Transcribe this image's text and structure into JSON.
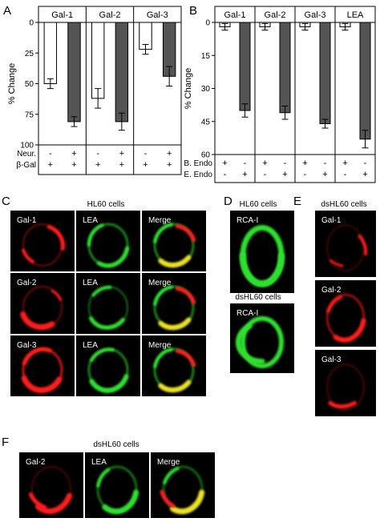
{
  "chart_data": [
    {
      "panel": "A",
      "type": "bar",
      "ylabel": "% Change",
      "ylim": [
        0,
        100
      ],
      "y_ticks": [
        "0",
        "25",
        "50",
        "75",
        "100"
      ],
      "y_inverted": true,
      "groups": [
        "Gal-1",
        "Gal-2",
        "Gal-3"
      ],
      "bars": [
        {
          "group": "Gal-1",
          "fill": "white",
          "value": 50,
          "error": 4
        },
        {
          "group": "Gal-1",
          "fill": "gray",
          "value": 81,
          "error": 4
        },
        {
          "group": "Gal-2",
          "fill": "white",
          "value": 62,
          "error": 8
        },
        {
          "group": "Gal-2",
          "fill": "gray",
          "value": 81,
          "error": 7
        },
        {
          "group": "Gal-3",
          "fill": "white",
          "value": 22,
          "error": 4
        },
        {
          "group": "Gal-3",
          "fill": "gray",
          "value": 44,
          "error": 8
        }
      ],
      "conditions": [
        {
          "label": "Neur.",
          "signs": [
            "-",
            "+",
            "-",
            "+",
            "-",
            "+"
          ]
        },
        {
          "label": "β-Gal",
          "signs": [
            "+",
            "+",
            "+",
            "+",
            "+",
            "+"
          ]
        }
      ],
      "colors": {
        "white_bar": "#ffffff",
        "gray_bar": "#545454"
      }
    },
    {
      "panel": "B",
      "type": "bar",
      "ylabel": "% Change",
      "ylim": [
        0,
        60
      ],
      "y_ticks": [
        "0",
        "15",
        "30",
        "45",
        "60"
      ],
      "y_inverted": true,
      "groups": [
        "Gal-1",
        "Gal-2",
        "Gal-3",
        "LEA"
      ],
      "bars": [
        {
          "group": "Gal-1",
          "fill": "white",
          "value": 2,
          "error": 1.5
        },
        {
          "group": "Gal-1",
          "fill": "gray",
          "value": 40,
          "error": 3
        },
        {
          "group": "Gal-2",
          "fill": "white",
          "value": 2,
          "error": 1.5
        },
        {
          "group": "Gal-2",
          "fill": "gray",
          "value": 41,
          "error": 3
        },
        {
          "group": "Gal-3",
          "fill": "white",
          "value": 2,
          "error": 1.5
        },
        {
          "group": "Gal-3",
          "fill": "gray",
          "value": 46,
          "error": 2
        },
        {
          "group": "LEA",
          "fill": "white",
          "value": 2,
          "error": 1.5
        },
        {
          "group": "LEA",
          "fill": "gray",
          "value": 53,
          "error": 4
        }
      ],
      "conditions": [
        {
          "label": "B. Endo",
          "signs": [
            "+",
            "-",
            "+",
            "-",
            "+",
            "-",
            "+",
            "-"
          ]
        },
        {
          "label": "E. Endo",
          "signs": [
            "-",
            "+",
            "-",
            "+",
            "-",
            "+",
            "-",
            "+"
          ]
        }
      ],
      "colors": {
        "white_bar": "#ffffff",
        "gray_bar": "#545454"
      }
    }
  ],
  "panels": {
    "A": "A",
    "B": "B",
    "C": "C",
    "D": "D",
    "E": "E",
    "F": "F"
  },
  "captions": {
    "c_title": "HL60 cells",
    "d_top_title": "HL60 cells",
    "d_bottom_title": "dsHL60 cells",
    "e_title": "dsHL60 cells",
    "f_title": "dsHL60 cells"
  },
  "micrographs": {
    "c_rows": [
      [
        "Gal-1",
        "LEA",
        "Merge"
      ],
      [
        "Gal-2",
        "LEA",
        "Merge"
      ],
      [
        "Gal-3",
        "LEA",
        "Merge"
      ]
    ],
    "d_labels": [
      "RCA-I",
      "RCA-I"
    ],
    "e_labels": [
      "Gal-1",
      "Gal-2",
      "Gal-3"
    ],
    "f_labels": [
      "Gal-2",
      "LEA",
      "Merge"
    ]
  },
  "colors": {
    "micro_background": "#000000",
    "red_stain": "#ff1a1a",
    "green_stain": "#2ee02e",
    "merge_yellow": "#f0e020"
  }
}
